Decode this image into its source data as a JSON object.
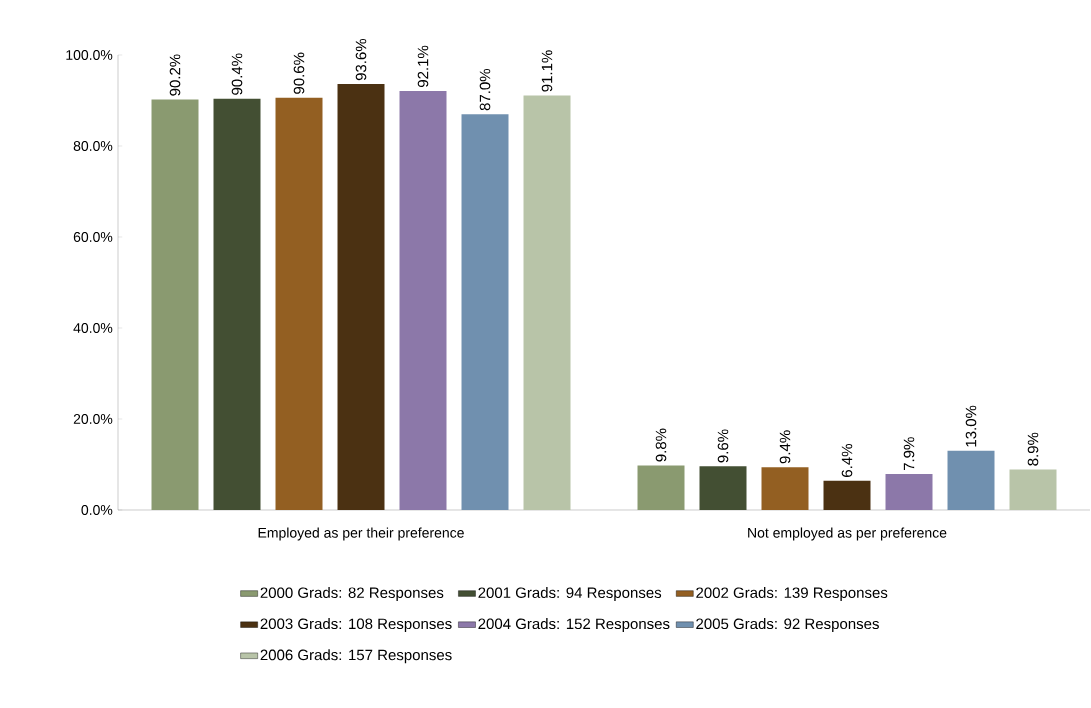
{
  "chart_data": {
    "type": "bar",
    "categories": [
      "Employed as per their preference",
      "Not employed as per preference"
    ],
    "series": [
      {
        "name": "2000 Grads: 82 Responses",
        "color": "#8a9a70",
        "values": [
          90.2,
          9.8
        ],
        "value_labels": [
          "90.2%",
          "9.8%"
        ]
      },
      {
        "name": "2001 Grads: 94 Responses",
        "color": "#434f33",
        "values": [
          90.4,
          9.6
        ],
        "value_labels": [
          "90.4%",
          "9.6%"
        ]
      },
      {
        "name": "2002 Grads: 139 Responses",
        "color": "#935f22",
        "values": [
          90.6,
          9.4
        ],
        "value_labels": [
          "90.6%",
          "9.4%"
        ]
      },
      {
        "name": "2003 Grads: 108 Responses",
        "color": "#4b3112",
        "values": [
          93.6,
          6.4
        ],
        "value_labels": [
          "93.6%",
          "6.4%"
        ]
      },
      {
        "name": "2004 Grads: 152 Responses",
        "color": "#8c78a9",
        "values": [
          92.1,
          7.9
        ],
        "value_labels": [
          "92.1%",
          "7.9%"
        ]
      },
      {
        "name": "2005 Grads: 92 Responses",
        "color": "#7090af",
        "values": [
          87.0,
          13.0
        ],
        "value_labels": [
          "87.0%",
          "13.0%"
        ]
      },
      {
        "name": "2006 Grads: 157 Responses",
        "color": "#b8c4a8",
        "values": [
          91.1,
          8.9
        ],
        "value_labels": [
          "91.1%",
          "8.9%"
        ]
      }
    ],
    "ylim": [
      0,
      100
    ],
    "yticks": [
      {
        "value": 0,
        "label": "0.0%"
      },
      {
        "value": 20,
        "label": "20.0%"
      },
      {
        "value": 40,
        "label": "40.0%"
      },
      {
        "value": 60,
        "label": "60.0%"
      },
      {
        "value": 80,
        "label": "80.0%"
      },
      {
        "value": 100,
        "label": "100.0%"
      }
    ],
    "legend": "bottom"
  }
}
